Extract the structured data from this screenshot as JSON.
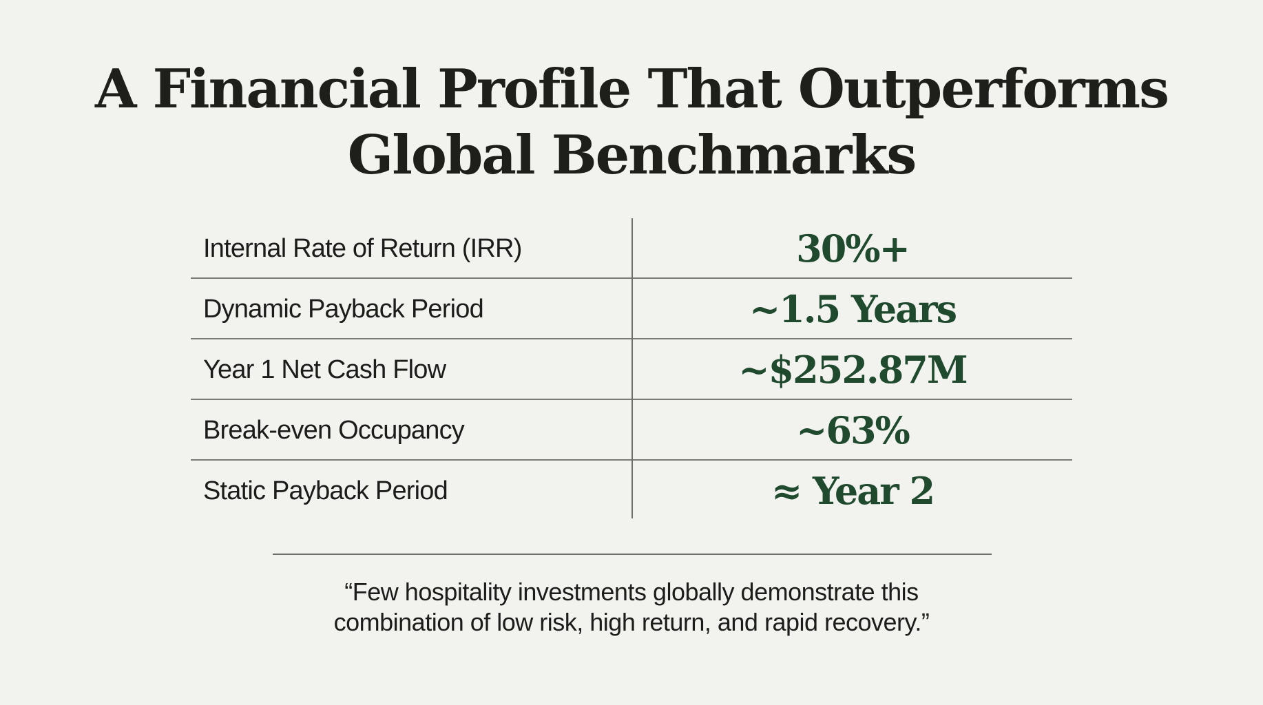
{
  "title": {
    "line1": "A Financial Profile That Outperforms",
    "line2": "Global Benchmarks"
  },
  "metrics": [
    {
      "label": "Internal Rate of Return (IRR)",
      "value": "30%+"
    },
    {
      "label": "Dynamic Payback Period",
      "value": "~1.5 Years"
    },
    {
      "label": "Year 1 Net Cash Flow",
      "value": "~$252.87M"
    },
    {
      "label": "Break-even Occupancy",
      "value": "~63%"
    },
    {
      "label": "Static Payback Period",
      "value": "≈ Year 2"
    }
  ],
  "quote": {
    "line1": "“Few hospitality investments globally demonstrate this",
    "line2": "combination of low risk, high return, and rapid recovery.”"
  },
  "colors": {
    "background": "#f2f2ef",
    "title": "#1e1e1b",
    "value": "#1f4a2e",
    "rule": "#6d6d6a"
  }
}
